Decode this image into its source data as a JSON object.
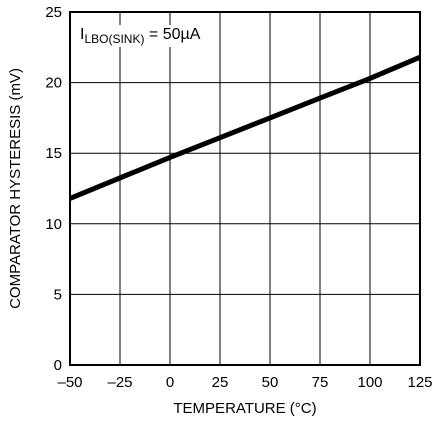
{
  "chart_data": {
    "type": "line",
    "xlabel": "TEMPERATURE (°C)",
    "ylabel": "COMPARATOR HYSTERESIS (mV)",
    "xlim": [
      -50,
      125
    ],
    "ylim": [
      0,
      25
    ],
    "x_ticks": [
      -50,
      -25,
      0,
      25,
      50,
      75,
      100,
      125
    ],
    "x_tick_labels": [
      "–50",
      "–25",
      "0",
      "25",
      "50",
      "75",
      "100",
      "125"
    ],
    "y_ticks": [
      0,
      5,
      10,
      15,
      20,
      25
    ],
    "y_tick_labels": [
      "0",
      "5",
      "10",
      "15",
      "20",
      "25"
    ],
    "grid": true,
    "annotation": {
      "main": "I",
      "subscript": "LBO(SINK)",
      "rest": " = 50µA"
    },
    "series": [
      {
        "color": "#000000",
        "x": [
          -50,
          0,
          25,
          50,
          75,
          100,
          125
        ],
        "y": [
          11.8,
          14.7,
          16.1,
          17.5,
          18.9,
          20.3,
          21.8
        ]
      }
    ]
  }
}
